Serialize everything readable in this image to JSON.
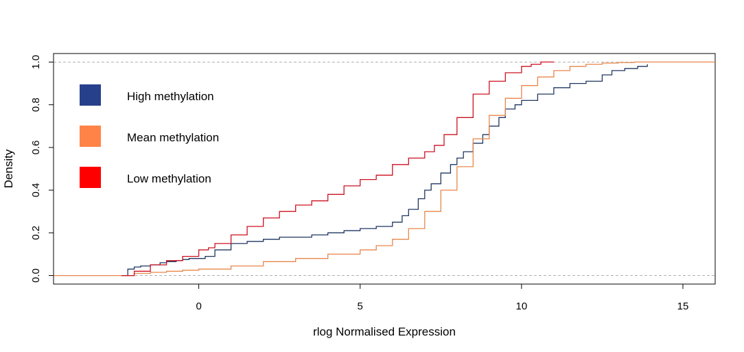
{
  "chart_data": {
    "type": "line",
    "subtype": "empirical-cdf-step",
    "title": "",
    "xlabel": "rlog Normalised Expression",
    "ylabel": "Density",
    "xlim": [
      -4.5,
      16
    ],
    "ylim": [
      -0.04,
      1.04
    ],
    "x_ticks": [
      0,
      5,
      10,
      15
    ],
    "y_ticks": [
      0.0,
      0.2,
      0.4,
      0.6,
      0.8,
      1.0
    ],
    "x_tick_labels": [
      "0",
      "5",
      "10",
      "15"
    ],
    "y_tick_labels": [
      "0.0",
      "0.2",
      "0.4",
      "0.6",
      "0.8",
      "1.0"
    ],
    "reference_lines_y": [
      0,
      1
    ],
    "grid": false,
    "legend": {
      "position": "top-left",
      "entries": [
        "High methylation",
        "Mean methylation",
        "Low methylation"
      ],
      "colors": [
        "#27408B",
        "#FF8347",
        "#FF0000"
      ]
    },
    "series": [
      {
        "name": "High methylation",
        "color": "#1f3560",
        "x": [
          -2.4,
          -2.2,
          -2.0,
          -1.8,
          -1.5,
          -1.2,
          -1.0,
          -0.7,
          -0.5,
          -0.3,
          0.0,
          0.2,
          0.5,
          1.0,
          1.5,
          2.0,
          2.5,
          3.0,
          3.5,
          4.0,
          4.5,
          5.0,
          5.5,
          6.0,
          6.3,
          6.5,
          6.8,
          7.0,
          7.2,
          7.5,
          7.8,
          8.0,
          8.2,
          8.5,
          8.8,
          9.0,
          9.3,
          9.5,
          9.8,
          10.0,
          10.5,
          11.0,
          11.5,
          12.0,
          12.5,
          12.8,
          13.2,
          13.6,
          13.9
        ],
        "y": [
          0.0,
          0.03,
          0.04,
          0.045,
          0.05,
          0.06,
          0.065,
          0.07,
          0.075,
          0.08,
          0.08,
          0.09,
          0.12,
          0.15,
          0.16,
          0.17,
          0.18,
          0.18,
          0.19,
          0.2,
          0.21,
          0.22,
          0.23,
          0.25,
          0.28,
          0.31,
          0.36,
          0.4,
          0.43,
          0.48,
          0.52,
          0.55,
          0.58,
          0.62,
          0.66,
          0.7,
          0.74,
          0.78,
          0.8,
          0.82,
          0.85,
          0.88,
          0.9,
          0.91,
          0.94,
          0.96,
          0.97,
          0.98,
          0.99
        ]
      },
      {
        "name": "Mean methylation",
        "color": "#E8864A",
        "x": [
          -4.5,
          -2.4,
          -2.0,
          -1.5,
          -1.0,
          -0.5,
          0.0,
          1.0,
          2.0,
          3.0,
          4.0,
          5.0,
          5.5,
          6.0,
          6.5,
          7.0,
          7.5,
          8.0,
          8.5,
          9.0,
          9.5,
          10.0,
          10.5,
          11.0,
          11.5,
          12.0,
          12.5,
          13.0,
          13.5,
          14.0,
          16.0
        ],
        "y": [
          0.0,
          0.0,
          0.01,
          0.015,
          0.02,
          0.025,
          0.03,
          0.045,
          0.065,
          0.08,
          0.1,
          0.12,
          0.14,
          0.17,
          0.22,
          0.3,
          0.4,
          0.51,
          0.64,
          0.75,
          0.83,
          0.89,
          0.93,
          0.96,
          0.98,
          0.99,
          0.995,
          0.998,
          1.0,
          1.0,
          1.0
        ]
      },
      {
        "name": "Low methylation",
        "color": "#CC1020",
        "x": [
          -2.4,
          -2.0,
          -1.5,
          -1.0,
          -0.5,
          0.0,
          0.3,
          0.5,
          1.0,
          1.5,
          2.0,
          2.5,
          3.0,
          3.5,
          4.0,
          4.5,
          5.0,
          5.5,
          6.0,
          6.5,
          7.0,
          7.3,
          7.6,
          8.0,
          8.5,
          9.0,
          9.5,
          10.0,
          10.3,
          10.6,
          11.0
        ],
        "y": [
          0.0,
          0.02,
          0.05,
          0.07,
          0.09,
          0.12,
          0.13,
          0.15,
          0.19,
          0.23,
          0.27,
          0.3,
          0.33,
          0.35,
          0.38,
          0.42,
          0.45,
          0.47,
          0.52,
          0.55,
          0.58,
          0.61,
          0.66,
          0.74,
          0.85,
          0.91,
          0.95,
          0.98,
          0.99,
          1.0,
          1.0
        ]
      }
    ]
  }
}
